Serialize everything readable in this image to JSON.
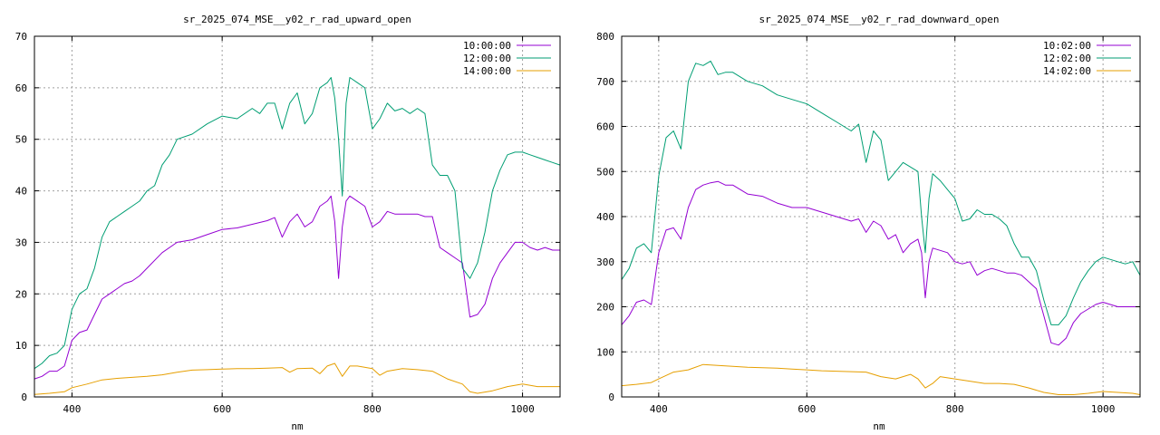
{
  "chart_data": [
    {
      "type": "line",
      "title": "sr_2025_074_MSE__y02_r_rad_upward_open",
      "xlabel": "nm",
      "ylabel": "",
      "xlim": [
        350,
        1050
      ],
      "ylim": [
        0,
        70
      ],
      "xticks": [
        400,
        600,
        800,
        1000
      ],
      "yticks": [
        0,
        10,
        20,
        30,
        40,
        50,
        60,
        70
      ],
      "grid": true,
      "legend_position": "top-right",
      "series": [
        {
          "name": "10:00:00",
          "color": "#9400d3",
          "x": [
            350,
            360,
            370,
            380,
            390,
            400,
            410,
            420,
            430,
            440,
            450,
            460,
            470,
            480,
            490,
            500,
            520,
            540,
            560,
            580,
            600,
            620,
            640,
            660,
            670,
            680,
            690,
            700,
            710,
            720,
            730,
            740,
            745,
            750,
            755,
            760,
            765,
            770,
            780,
            790,
            800,
            810,
            820,
            830,
            840,
            850,
            860,
            870,
            880,
            890,
            900,
            910,
            920,
            930,
            940,
            950,
            960,
            970,
            980,
            990,
            1000,
            1010,
            1020,
            1030,
            1040,
            1050
          ],
          "y": [
            3.5,
            4,
            5,
            5,
            6,
            11,
            12.5,
            13,
            16,
            19,
            20,
            21,
            22,
            22.5,
            23.5,
            25,
            28,
            30,
            30.5,
            31.5,
            32.5,
            32.8,
            33.5,
            34.2,
            34.8,
            31,
            34,
            35.5,
            33,
            34,
            37,
            38,
            39,
            34,
            23,
            33,
            38,
            39,
            38,
            37,
            33,
            34,
            36,
            35.5,
            35.5,
            35.5,
            35.5,
            35,
            35,
            29,
            28,
            27,
            26,
            15.5,
            16,
            18,
            23,
            26,
            28,
            30,
            30,
            29,
            28.5,
            29,
            28.5,
            28.5
          ]
        },
        {
          "name": "12:00:00",
          "color": "#009e73",
          "x": [
            350,
            360,
            370,
            380,
            390,
            400,
            410,
            420,
            430,
            440,
            450,
            460,
            470,
            480,
            490,
            500,
            510,
            520,
            530,
            540,
            560,
            580,
            600,
            620,
            640,
            650,
            660,
            670,
            680,
            690,
            700,
            710,
            720,
            730,
            740,
            745,
            750,
            755,
            760,
            765,
            770,
            780,
            790,
            800,
            810,
            820,
            830,
            840,
            850,
            860,
            870,
            880,
            890,
            900,
            910,
            920,
            930,
            940,
            950,
            960,
            970,
            980,
            990,
            1000,
            1010,
            1020,
            1030,
            1040,
            1050
          ],
          "y": [
            5.5,
            6.5,
            8,
            8.5,
            10,
            17,
            20,
            21,
            25,
            31,
            34,
            35,
            36,
            37,
            38,
            40,
            41,
            45,
            47,
            50,
            51,
            53,
            54.5,
            54,
            56,
            55,
            57,
            57,
            52,
            57,
            59,
            53,
            55,
            60,
            61,
            62,
            58,
            50,
            39,
            57,
            62,
            61,
            60,
            52,
            54,
            57,
            55.5,
            56,
            55,
            56,
            55,
            45,
            43,
            43,
            40,
            25,
            23,
            26,
            32,
            40,
            44,
            47,
            47.5,
            47.5,
            47,
            46.5,
            46,
            45.5,
            45
          ]
        },
        {
          "name": "14:00:00",
          "color": "#e69f00",
          "x": [
            350,
            370,
            390,
            400,
            420,
            440,
            460,
            480,
            500,
            520,
            540,
            560,
            580,
            600,
            620,
            640,
            660,
            680,
            690,
            700,
            720,
            730,
            740,
            750,
            760,
            770,
            780,
            800,
            810,
            820,
            840,
            860,
            880,
            900,
            920,
            930,
            940,
            960,
            980,
            1000,
            1020,
            1050
          ],
          "y": [
            0.5,
            0.7,
            1,
            1.8,
            2.5,
            3.3,
            3.6,
            3.8,
            4,
            4.3,
            4.8,
            5.2,
            5.3,
            5.4,
            5.5,
            5.5,
            5.6,
            5.7,
            4.8,
            5.5,
            5.6,
            4.5,
            6,
            6.5,
            4,
            6,
            6,
            5.5,
            4.2,
            5,
            5.5,
            5.3,
            5,
            3.5,
            2.5,
            1,
            0.7,
            1.2,
            2,
            2.5,
            2,
            2
          ]
        }
      ]
    },
    {
      "type": "line",
      "title": "sr_2025_074_MSE__y02_r_rad_downward_open",
      "xlabel": "nm",
      "ylabel": "",
      "xlim": [
        350,
        1050
      ],
      "ylim": [
        0,
        800
      ],
      "xticks": [
        400,
        600,
        800,
        1000
      ],
      "yticks": [
        0,
        100,
        200,
        300,
        400,
        500,
        600,
        700,
        800
      ],
      "grid": true,
      "legend_position": "top-right",
      "series": [
        {
          "name": "10:02:00",
          "color": "#9400d3",
          "x": [
            350,
            360,
            370,
            380,
            390,
            400,
            410,
            420,
            430,
            440,
            450,
            460,
            470,
            480,
            490,
            500,
            520,
            540,
            560,
            580,
            600,
            620,
            640,
            660,
            670,
            680,
            690,
            700,
            710,
            720,
            730,
            740,
            750,
            755,
            760,
            765,
            770,
            780,
            790,
            800,
            810,
            820,
            830,
            840,
            850,
            860,
            870,
            880,
            890,
            900,
            910,
            920,
            930,
            940,
            950,
            960,
            970,
            980,
            990,
            1000,
            1010,
            1020,
            1030,
            1040,
            1050
          ],
          "y": [
            160,
            180,
            210,
            215,
            205,
            320,
            370,
            375,
            350,
            420,
            460,
            470,
            475,
            478,
            470,
            470,
            450,
            445,
            430,
            420,
            420,
            410,
            400,
            390,
            395,
            365,
            390,
            380,
            350,
            360,
            320,
            340,
            350,
            320,
            220,
            300,
            330,
            325,
            320,
            300,
            295,
            300,
            270,
            280,
            285,
            280,
            275,
            275,
            270,
            255,
            240,
            180,
            120,
            115,
            130,
            165,
            185,
            195,
            205,
            210,
            205,
            200,
            200,
            200,
            200
          ]
        },
        {
          "name": "12:02:00",
          "color": "#009e73",
          "x": [
            350,
            360,
            370,
            380,
            390,
            400,
            410,
            420,
            430,
            440,
            450,
            460,
            470,
            480,
            490,
            500,
            520,
            540,
            560,
            580,
            600,
            620,
            640,
            660,
            670,
            680,
            690,
            700,
            710,
            720,
            730,
            740,
            750,
            755,
            760,
            765,
            770,
            780,
            790,
            800,
            810,
            820,
            830,
            840,
            850,
            860,
            870,
            880,
            890,
            900,
            910,
            920,
            930,
            940,
            950,
            960,
            970,
            980,
            990,
            1000,
            1010,
            1020,
            1030,
            1040,
            1050
          ],
          "y": [
            260,
            285,
            330,
            340,
            320,
            490,
            575,
            590,
            550,
            700,
            740,
            735,
            745,
            715,
            720,
            720,
            700,
            690,
            670,
            660,
            650,
            630,
            610,
            590,
            605,
            520,
            590,
            570,
            480,
            500,
            520,
            510,
            500,
            400,
            320,
            440,
            495,
            480,
            460,
            440,
            390,
            395,
            415,
            405,
            405,
            395,
            380,
            340,
            310,
            310,
            280,
            215,
            160,
            160,
            180,
            220,
            255,
            280,
            300,
            310,
            305,
            300,
            295,
            300,
            270
          ]
        },
        {
          "name": "14:02:00",
          "color": "#e69f00",
          "x": [
            350,
            370,
            390,
            400,
            420,
            440,
            460,
            480,
            500,
            520,
            540,
            560,
            580,
            600,
            620,
            640,
            660,
            680,
            700,
            720,
            740,
            750,
            760,
            770,
            780,
            800,
            820,
            840,
            860,
            880,
            900,
            920,
            940,
            960,
            980,
            1000,
            1020,
            1040,
            1050
          ],
          "y": [
            25,
            28,
            32,
            40,
            55,
            60,
            72,
            70,
            68,
            66,
            65,
            64,
            62,
            60,
            58,
            57,
            56,
            55,
            45,
            40,
            50,
            40,
            20,
            30,
            45,
            40,
            35,
            30,
            30,
            28,
            20,
            10,
            5,
            5,
            8,
            12,
            10,
            8,
            5
          ]
        }
      ]
    }
  ]
}
